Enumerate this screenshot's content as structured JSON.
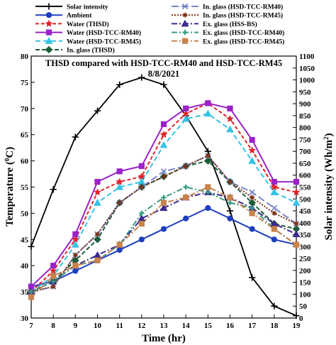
{
  "chart_data": {
    "type": "line",
    "title": "THSD compared with HSD-TCC-RM40 and HSD-TCC-RM45",
    "subtitle": "8/8/2021",
    "xlabel": "Time (hr)",
    "ylabel": "Temperature (",
    "ylabel_sup": "0",
    "ylabel_end": "C)",
    "y2label": "Solar intensity (Wh/m",
    "y2label_sup": "2",
    "y2label_end": ")",
    "x": [
      7,
      8,
      9,
      10,
      11,
      12,
      13,
      14,
      15,
      16,
      17,
      18,
      19
    ],
    "xlim": [
      7,
      19
    ],
    "ylim": [
      30,
      80
    ],
    "y2lim": [
      0,
      1100
    ],
    "yticks": [
      30,
      35,
      40,
      45,
      50,
      55,
      60,
      65,
      70,
      75,
      80
    ],
    "y2ticks": [
      0,
      50,
      100,
      150,
      200,
      250,
      300,
      350,
      400,
      450,
      500,
      550,
      600,
      650,
      700,
      750,
      800,
      850,
      900,
      950,
      1000,
      1050,
      1100
    ],
    "grid": false,
    "legend_position": "top",
    "series": [
      {
        "name": "Solar intensity",
        "axis": "right",
        "color": "#000000",
        "dash": "",
        "marker": "plus",
        "values": [
          300,
          540,
          760,
          870,
          980,
          1010,
          980,
          850,
          700,
          450,
          170,
          50,
          10
        ]
      },
      {
        "name": "Ambient",
        "axis": "left",
        "color": "#1f3fbf",
        "dash": "",
        "marker": "circle",
        "values": [
          36,
          37,
          39,
          41,
          43,
          45,
          47,
          49,
          51,
          49,
          47,
          45,
          44
        ]
      },
      {
        "name": "Water (THSD)",
        "axis": "left",
        "color": "#e0232a",
        "dash": "5,3",
        "marker": "star",
        "values": [
          35,
          39,
          45,
          54,
          56,
          57,
          65,
          69,
          71,
          68,
          62,
          55,
          54
        ]
      },
      {
        "name": "Water (HSD-TCC-RM40)",
        "axis": "left",
        "color": "#9a22c9",
        "dash": "",
        "marker": "square",
        "values": [
          36,
          40,
          46,
          56,
          58,
          59,
          67,
          70,
          71,
          70,
          64,
          56,
          56
        ]
      },
      {
        "name": "Water (HSD-TCC-RM45)",
        "axis": "left",
        "color": "#35c3e6",
        "dash": "7,4",
        "marker": "triangle",
        "values": [
          35,
          38,
          44,
          52,
          55,
          56,
          63,
          68,
          69,
          66,
          60,
          54,
          52
        ]
      },
      {
        "name": "In. glass (THSD)",
        "axis": "left",
        "color": "#1b5e3a",
        "dash": "6,3",
        "marker": "diamond",
        "values": [
          35,
          37,
          41,
          45,
          52,
          55,
          57,
          59,
          60,
          56,
          52,
          48,
          47
        ]
      },
      {
        "name": "In. glass (HSD-TCC-RM40)",
        "axis": "left",
        "color": "#7a86c8",
        "dash": "10,4",
        "marker": "x",
        "values": [
          35,
          36,
          42,
          46,
          52,
          55,
          58,
          59,
          61,
          56,
          54,
          51,
          48
        ]
      },
      {
        "name": "In. glass (HSD-TCC-RM45)",
        "axis": "left",
        "color": "#7a2d16",
        "dash": "2,2",
        "marker": "asterisk",
        "values": [
          35,
          36,
          42,
          46,
          52,
          55,
          57,
          59,
          61,
          56,
          53,
          50,
          48
        ]
      },
      {
        "name": "Ex. glass (HSS-BS)",
        "axis": "left",
        "color": "#3d2a8c",
        "dash": "8,3,2,3",
        "marker": "triangle",
        "values": [
          35,
          37,
          40,
          42,
          44,
          49,
          51,
          53,
          54,
          53,
          51,
          48,
          46
        ]
      },
      {
        "name": "Ex. glass (HSD-TCC-RM40)",
        "axis": "left",
        "color": "#3a9b83",
        "dash": "8,3,2,3",
        "marker": "cross",
        "values": [
          35,
          37,
          40,
          41,
          44,
          50,
          53,
          55,
          54,
          52,
          51,
          47,
          44
        ]
      },
      {
        "name": "Ex. glass (HSD-TCC-RM45)",
        "axis": "left",
        "color": "#c9824a",
        "dash": "8,3,2,3",
        "marker": "square",
        "values": [
          34,
          38,
          40,
          41,
          44,
          48,
          52,
          53,
          55,
          53,
          50,
          47,
          44
        ]
      }
    ]
  }
}
